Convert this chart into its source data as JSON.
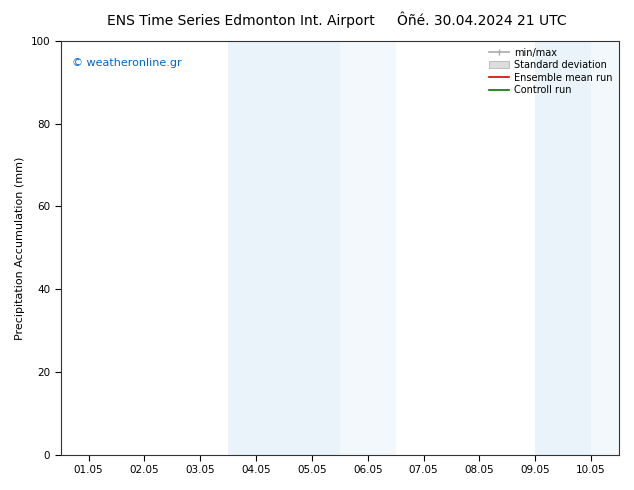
{
  "title_left": "ENS Time Series Edmonton Int. Airport",
  "title_right": "Ôñé. 30.04.2024 21 UTC",
  "ylabel": "Precipitation Accumulation (mm)",
  "ylim": [
    0,
    100
  ],
  "yticks": [
    0,
    20,
    40,
    60,
    80,
    100
  ],
  "xtick_labels": [
    "01.05",
    "02.05",
    "03.05",
    "04.05",
    "05.05",
    "06.05",
    "07.05",
    "08.05",
    "09.05",
    "10.05"
  ],
  "n_xticks": 10,
  "xlim": [
    0,
    10
  ],
  "shaded_bands": [
    {
      "xmin": 3.0,
      "xmax": 5.0,
      "alpha": 0.35
    },
    {
      "xmin": 5.0,
      "xmax": 6.0,
      "alpha": 0.2
    },
    {
      "xmin": 8.5,
      "xmax": 9.5,
      "alpha": 0.35
    },
    {
      "xmin": 9.5,
      "xmax": 10.0,
      "alpha": 0.2
    }
  ],
  "band_color": "#c5ddf0",
  "watermark": "© weatheronline.gr",
  "watermark_color": "#0066cc",
  "legend_entries": [
    "min/max",
    "Standard deviation",
    "Ensemble mean run",
    "Controll run"
  ],
  "legend_line_colors": [
    "#aaaaaa",
    "#cccccc",
    "#dd0000",
    "#007700"
  ],
  "background_color": "#ffffff",
  "title_fontsize": 10,
  "tick_fontsize": 7.5,
  "ylabel_fontsize": 8
}
